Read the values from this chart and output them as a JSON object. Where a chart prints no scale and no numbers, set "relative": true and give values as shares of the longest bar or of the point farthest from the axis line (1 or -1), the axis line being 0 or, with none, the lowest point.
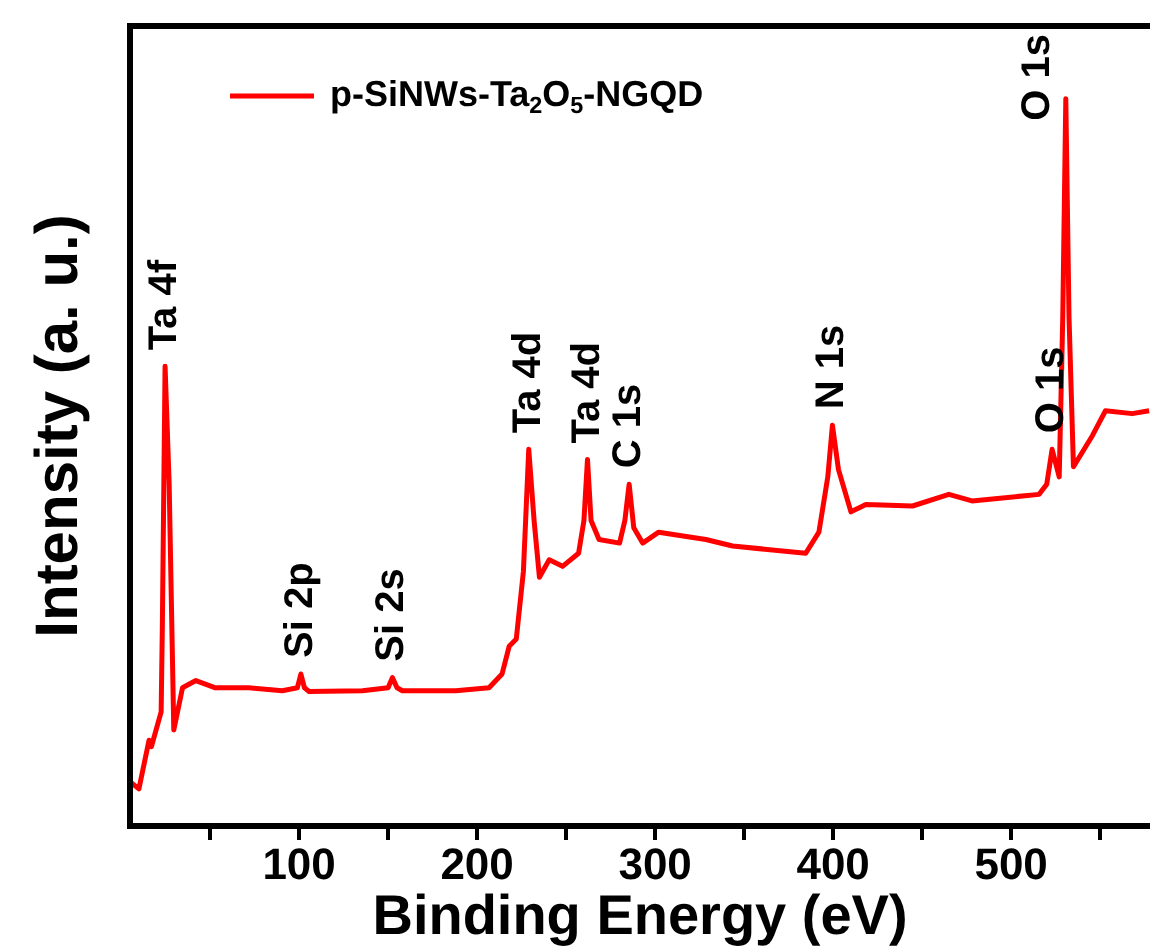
{
  "chart_data": {
    "type": "line",
    "relative": true,
    "xlabel": "Binding Energy (eV)",
    "ylabel": "Intensity (a. u.)",
    "legend": "top left",
    "grid": false,
    "marker": "none",
    "line_style": "solid",
    "xlim": [
      5,
      578
    ],
    "xticks": [
      {
        "value": 50,
        "label": null
      },
      100,
      {
        "value": 150,
        "label": null
      },
      200,
      {
        "value": 250,
        "label": null
      },
      300,
      {
        "value": 350,
        "label": null
      },
      400,
      {
        "value": 450,
        "label": null
      },
      500,
      {
        "value": 550,
        "label": null
      }
    ],
    "series": [
      {
        "name": "p-SiNWs-Ta$_{2}$O$_{5}$-NGQD",
        "color": "#ff0000",
        "x": [
          5,
          10,
          15.7,
          17,
          22.5,
          23.2,
          24.7,
          27,
          29.6,
          34.5,
          42,
          53,
          72,
          90.6,
          99,
          101,
          103,
          105.6,
          135.6,
          150,
          152.4,
          155,
          158,
          188,
          206.7,
          214,
          218,
          222,
          226,
          229,
          232,
          235,
          240.5,
          248,
          257,
          260,
          262,
          264,
          268.5,
          280,
          283,
          285.4,
          288,
          293,
          302,
          328.5,
          343.5,
          384.6,
          392,
          397,
          399.6,
          403,
          410,
          418.4,
          444.6,
          465,
          478,
          515.7,
          520,
          523,
          527,
          529,
          530.7,
          532.5,
          535,
          545.7,
          553,
          568,
          577.5
        ],
        "values": [
          0.061,
          0.051,
          0.118,
          0.109,
          0.157,
          0.28,
          0.632,
          0.47,
          0.132,
          0.19,
          0.2,
          0.19,
          0.19,
          0.186,
          0.19,
          0.209,
          0.19,
          0.185,
          0.186,
          0.19,
          0.204,
          0.19,
          0.186,
          0.186,
          0.19,
          0.209,
          0.247,
          0.257,
          0.35,
          0.518,
          0.42,
          0.342,
          0.366,
          0.357,
          0.375,
          0.42,
          0.504,
          0.42,
          0.394,
          0.389,
          0.42,
          0.47,
          0.41,
          0.389,
          0.404,
          0.394,
          0.385,
          0.375,
          0.404,
          0.48,
          0.551,
          0.49,
          0.432,
          0.442,
          0.44,
          0.456,
          0.447,
          0.456,
          0.47,
          0.518,
          0.48,
          0.7,
          1,
          0.7,
          0.494,
          0.537,
          0.571,
          0.567,
          0.571
        ]
      }
    ],
    "annotations": [
      {
        "text": "Ta 4f",
        "x": 24.7,
        "y": 0.632
      },
      {
        "text": "Si 2p",
        "x": 101,
        "y": 0.209
      },
      {
        "text": "Si 2s",
        "x": 152.4,
        "y": 0.204
      },
      {
        "text": "Ta 4d",
        "x": 229,
        "y": 0.518
      },
      {
        "text": "Ta 4d",
        "x": 262,
        "y": 0.504
      },
      {
        "text": "C 1s",
        "x": 285.4,
        "y": 0.47
      },
      {
        "text": "N 1s",
        "x": 399.6,
        "y": 0.551
      },
      {
        "text": "O 1s",
        "x": 523,
        "y": 0.518
      },
      {
        "text": "O 1s",
        "x": 530.7,
        "y": 1
      }
    ]
  }
}
